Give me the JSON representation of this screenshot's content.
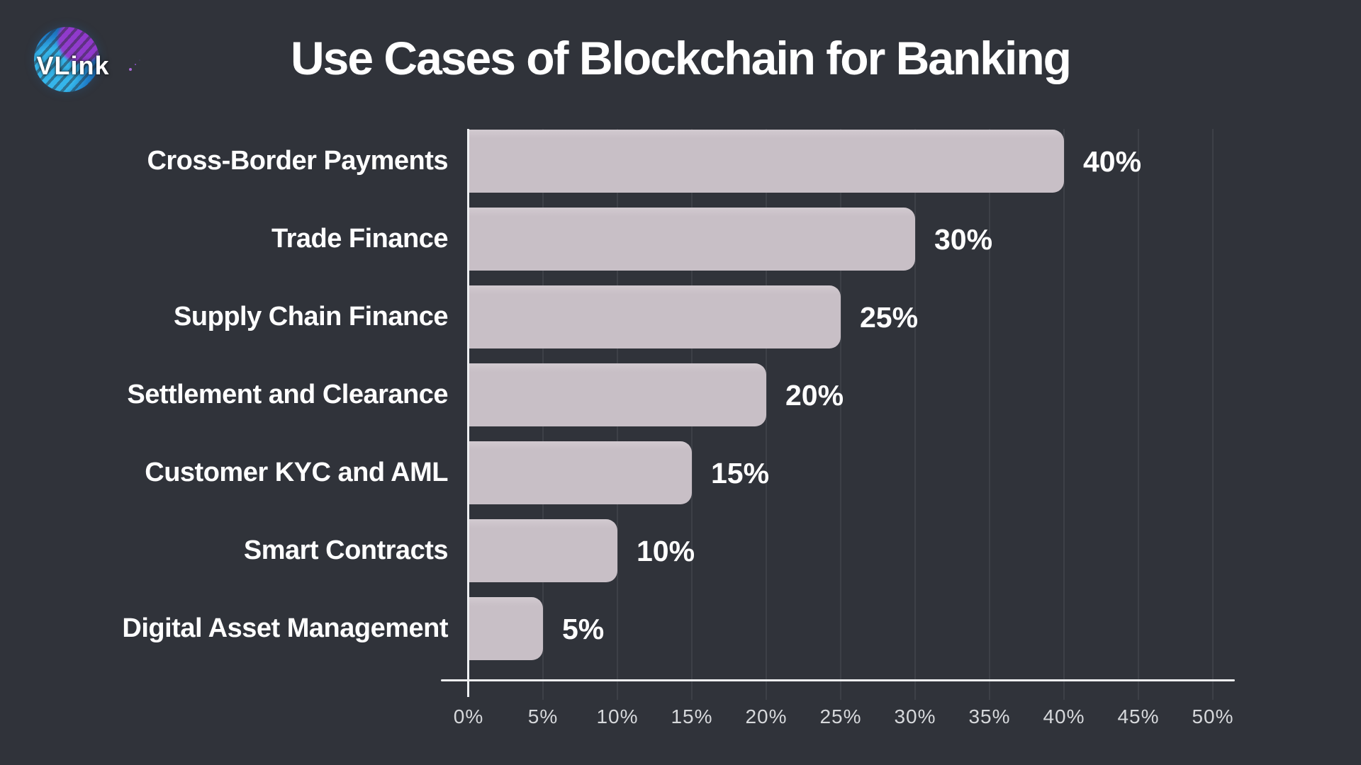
{
  "logo": {
    "text": "VLink"
  },
  "header": {
    "title": "Use Cases of Blockchain for Banking"
  },
  "chart_data": {
    "type": "bar",
    "orientation": "horizontal",
    "title": "Use Cases of Blockchain for Banking",
    "categories": [
      "Cross-Border Payments",
      "Trade Finance",
      "Supply Chain Finance",
      "Settlement and Clearance",
      "Customer KYC and AML",
      "Smart Contracts",
      "Digital Asset Management"
    ],
    "values": [
      40,
      30,
      25,
      20,
      15,
      10,
      5
    ],
    "value_labels": [
      "40%",
      "30%",
      "25%",
      "20%",
      "15%",
      "10%",
      "5%"
    ],
    "x_ticks": [
      0,
      5,
      10,
      15,
      20,
      25,
      30,
      35,
      40,
      45,
      50
    ],
    "x_tick_labels": [
      "0%",
      "5%",
      "10%",
      "15%",
      "20%",
      "25%",
      "30%",
      "35%",
      "40%",
      "45%",
      "50%"
    ],
    "xlim": [
      0,
      50
    ],
    "grid": "vertical",
    "legend": false,
    "colors": {
      "background": "#30333a",
      "bar": "#c8bfc6",
      "gridline": "#3d4047",
      "axis": "#eef0f2",
      "category_label": "#ffffff",
      "value_label": "#ffffff",
      "tick_label": "#d6d8db"
    }
  }
}
